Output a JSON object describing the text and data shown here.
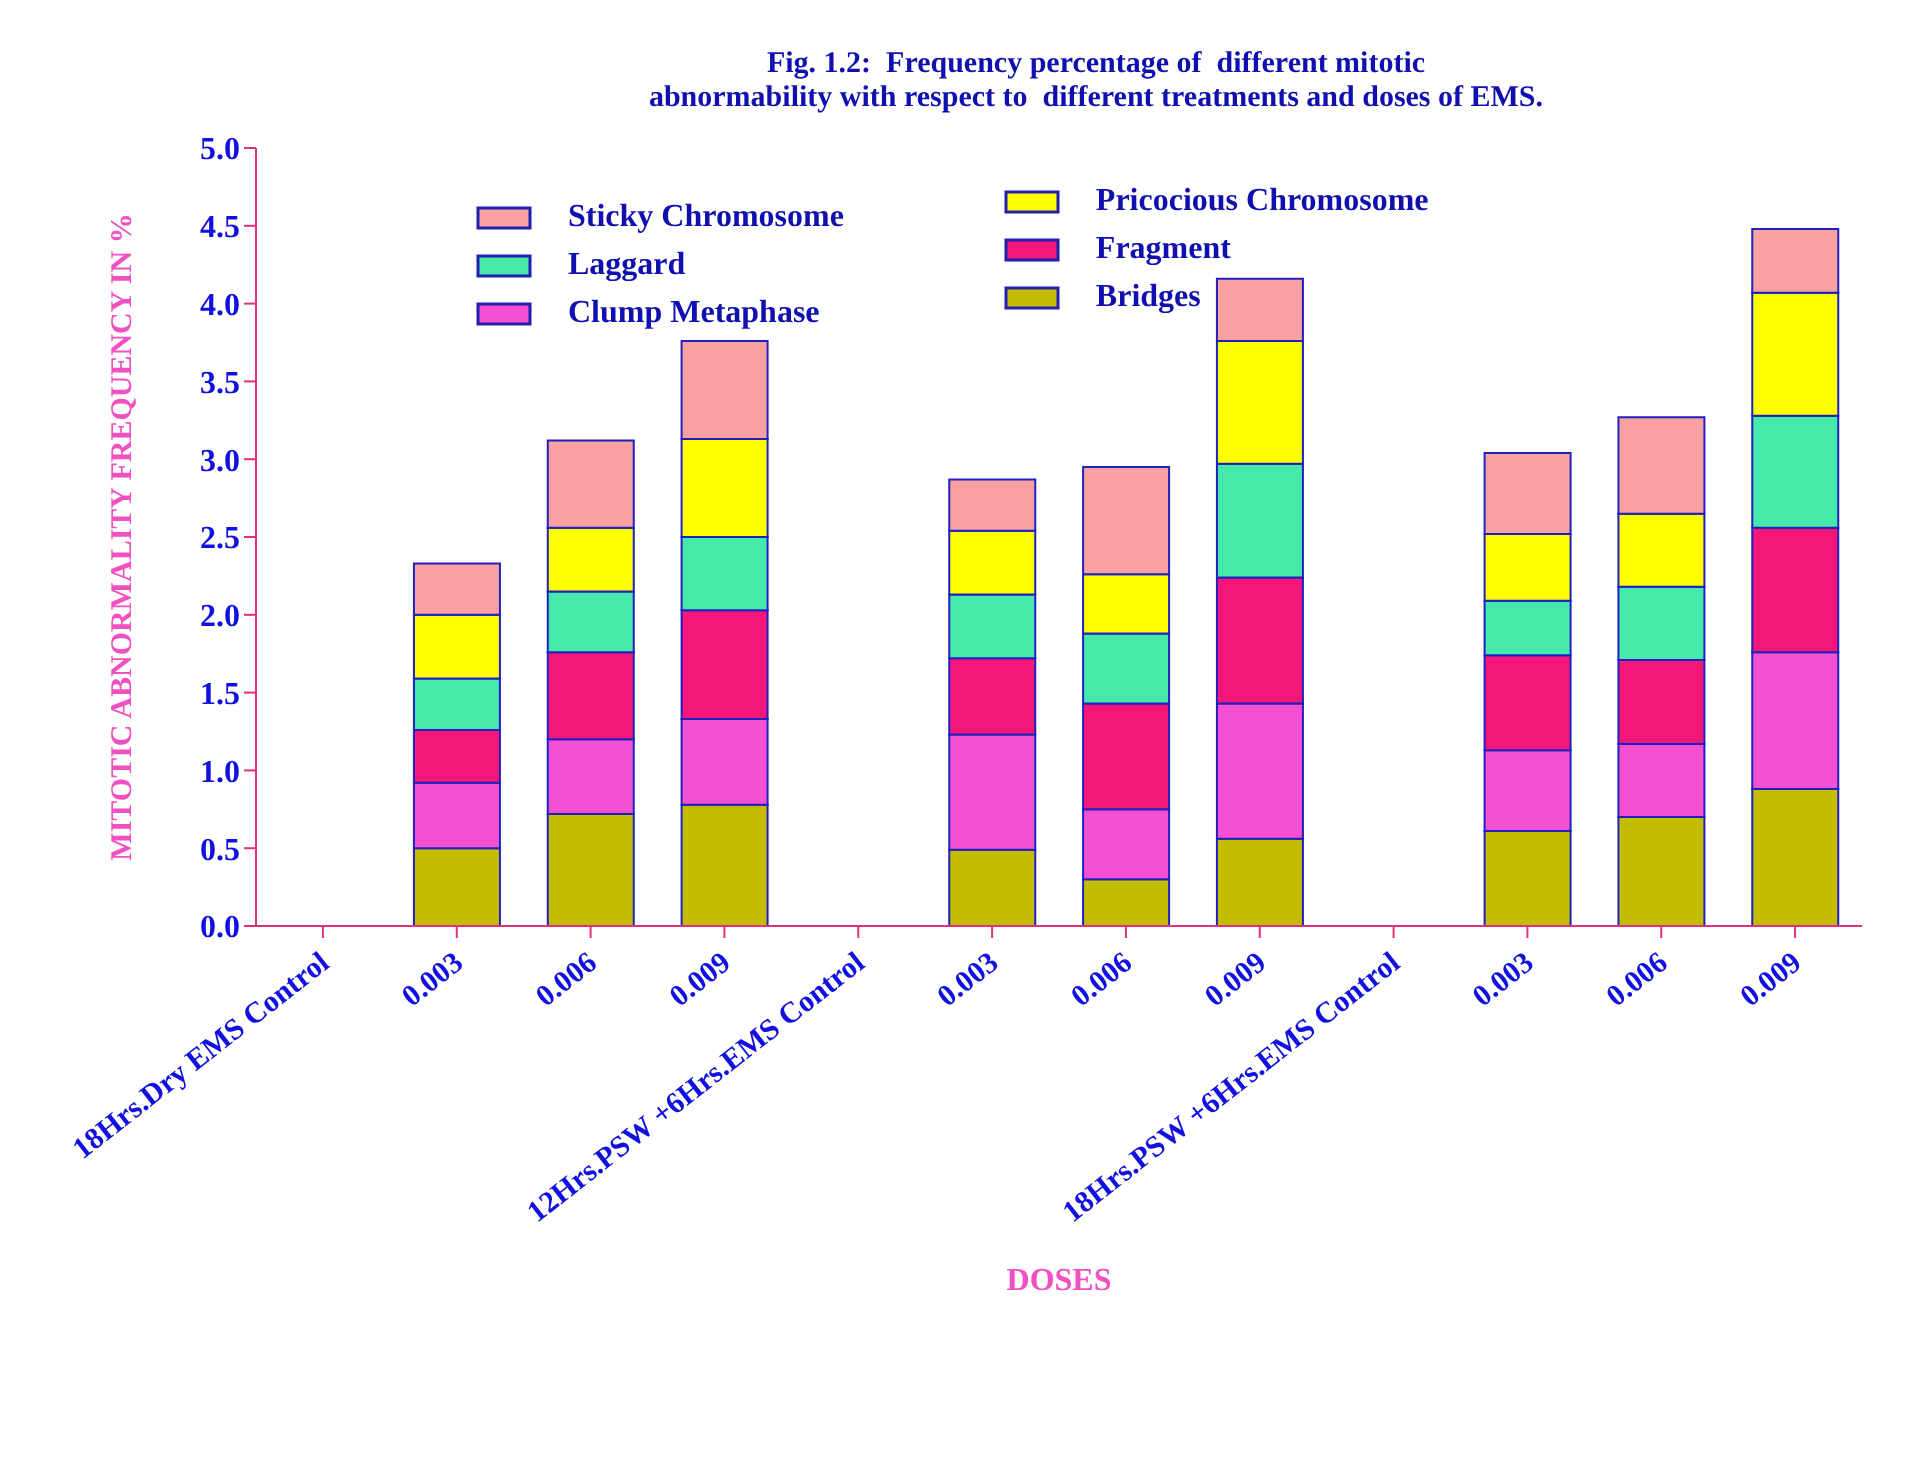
{
  "chart_data": {
    "type": "bar",
    "stacked": true,
    "title": "Fig. 1.2:  Frequency percentage of  different mitotic\nabnormability with respect to  different treatments and doses of EMS.",
    "xlabel": "DOSES",
    "ylabel": "MITOTIC ABNORMALITY FREQUENCY IN %",
    "categories": [
      "18Hrs.Dry EMS Control",
      "0.003",
      "0.006",
      "0.009",
      "12Hrs.PSW +6Hrs.EMS Control",
      "0.003",
      "0.006",
      "0.009",
      "18Hrs.PSW +6Hrs.EMS Control",
      "0.003",
      "0.006",
      "0.009"
    ],
    "series": [
      {
        "name": "Bridges",
        "color": "#c4bc00",
        "values": [
          null,
          0.5,
          0.72,
          0.78,
          null,
          0.49,
          0.3,
          0.56,
          null,
          0.61,
          0.7,
          0.88
        ]
      },
      {
        "name": "Clump Metaphase",
        "color": "#f550d2",
        "values": [
          null,
          0.42,
          0.48,
          0.55,
          null,
          0.74,
          0.45,
          0.87,
          null,
          0.52,
          0.47,
          0.88
        ]
      },
      {
        "name": "Fragment",
        "color": "#f5167a",
        "values": [
          null,
          0.34,
          0.56,
          0.7,
          null,
          0.49,
          0.68,
          0.81,
          null,
          0.61,
          0.54,
          0.8
        ]
      },
      {
        "name": "Laggard",
        "color": "#45eaaa",
        "values": [
          null,
          0.33,
          0.39,
          0.47,
          null,
          0.41,
          0.45,
          0.73,
          null,
          0.35,
          0.47,
          0.72
        ]
      },
      {
        "name": "Pricocious Chromosome",
        "color": "#ffff00",
        "values": [
          null,
          0.41,
          0.41,
          0.63,
          null,
          0.41,
          0.38,
          0.79,
          null,
          0.43,
          0.47,
          0.79
        ]
      },
      {
        "name": "Sticky Chromosome",
        "color": "#f9a0a0",
        "values": [
          null,
          0.33,
          0.56,
          0.63,
          null,
          0.33,
          0.69,
          0.4,
          null,
          0.52,
          0.62,
          0.41
        ]
      }
    ],
    "ylim": [
      0,
      5
    ],
    "yticks": [
      {
        "value": 0,
        "label": "0.0"
      },
      {
        "value": 0.5,
        "label": "0.5"
      },
      {
        "value": 1,
        "label": "1.0"
      },
      {
        "value": 1.5,
        "label": "1.5"
      },
      {
        "value": 2,
        "label": "2.0"
      },
      {
        "value": 2.5,
        "label": "2.5"
      },
      {
        "value": 3,
        "label": "3.0"
      },
      {
        "value": 3.5,
        "label": "3.5"
      },
      {
        "value": 4,
        "label": "4.0"
      },
      {
        "value": 4.5,
        "label": "4.5"
      },
      {
        "value": 5,
        "label": "5.0"
      }
    ],
    "grid": false,
    "legend": "top left"
  }
}
